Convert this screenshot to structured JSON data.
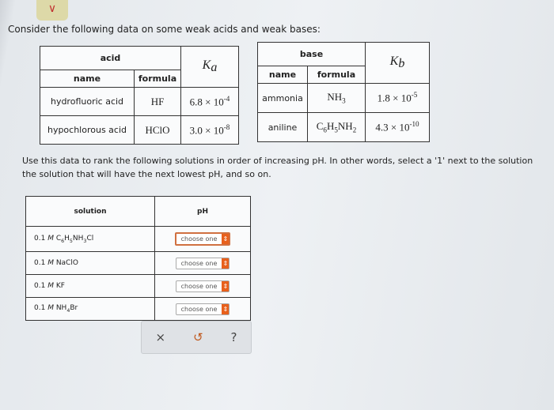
{
  "intro": "Consider the following data on some weak acids and weak bases:",
  "acid_table": {
    "group": "acid",
    "name_header": "name",
    "formula_header": "formula",
    "k_symbol": "K",
    "k_sub": "a",
    "rows": [
      {
        "name": "hydrofluoric acid",
        "formula": "HF",
        "k_mant": "6.8 × 10",
        "k_exp": "-4"
      },
      {
        "name": "hypochlorous acid",
        "formula": "HClO",
        "k_mant": "3.0 × 10",
        "k_exp": "-8"
      }
    ]
  },
  "base_table": {
    "group": "base",
    "name_header": "name",
    "formula_header": "formula",
    "k_symbol": "K",
    "k_sub": "b",
    "rows": [
      {
        "name": "ammonia",
        "formula": [
          "NH",
          "3",
          "",
          ""
        ],
        "k_mant": "1.8 × 10",
        "k_exp": "-5"
      },
      {
        "name": "aniline",
        "formula": [
          "C",
          "6",
          "H",
          "5",
          "NH",
          "2"
        ],
        "k_mant": "4.3 × 10",
        "k_exp": "-10"
      }
    ]
  },
  "instructions_1": "Use this data to rank the following solutions in order of increasing pH. In other words, select a '1' next to the solution",
  "instructions_2": "the solution that will have the next lowest pH, and so on.",
  "ranking": {
    "solution_header": "solution",
    "ph_header": "pH",
    "rows": [
      {
        "parts": [
          "0.1 ",
          "M",
          " C",
          "6",
          "H",
          "5",
          "NH",
          "3",
          "Cl"
        ],
        "value": "choose one"
      },
      {
        "parts": [
          "0.1 ",
          "M",
          " NaClO"
        ],
        "value": "choose one"
      },
      {
        "parts": [
          "0.1 ",
          "M",
          " KF"
        ],
        "value": "choose one"
      },
      {
        "parts": [
          "0.1 ",
          "M",
          " NH",
          "4",
          "Br"
        ],
        "value": "choose one"
      }
    ]
  },
  "actions": {
    "clear": "×",
    "undo": "↺",
    "help": "?"
  },
  "colors": {
    "accent": "#e8601c"
  }
}
